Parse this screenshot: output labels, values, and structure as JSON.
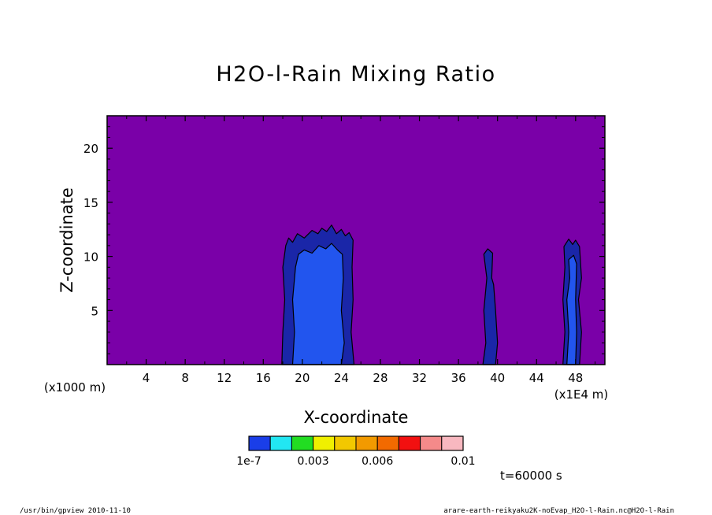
{
  "chart_data": {
    "type": "heatmap",
    "title": "H2O-l-Rain Mixing Ratio",
    "xlabel": "X-coordinate",
    "ylabel": "Z-coordinate",
    "x_unit_left": "(x1000 m)",
    "x_unit_right": "(x1E4 m)",
    "xlim": [
      0,
      51
    ],
    "ylim": [
      0,
      23
    ],
    "x_ticks": [
      4,
      8,
      12,
      16,
      20,
      24,
      28,
      32,
      36,
      40,
      44,
      48
    ],
    "x_tick_labels": [
      "4",
      "8",
      "12",
      "16",
      "20",
      "24",
      "28",
      "32",
      "36",
      "40",
      "44",
      "48"
    ],
    "y_ticks": [
      5,
      10,
      15,
      20
    ],
    "y_tick_labels": [
      "5",
      "10",
      "15",
      "20"
    ],
    "background_color": "#7a00a8",
    "regions": [
      {
        "name": "cell-1-outer",
        "level": "1e-7",
        "color": "#1a26a8",
        "polygon": [
          [
            17.9,
            0
          ],
          [
            18.0,
            3
          ],
          [
            18.2,
            6
          ],
          [
            18.0,
            9
          ],
          [
            18.3,
            11
          ],
          [
            18.6,
            11.7
          ],
          [
            19.0,
            11.3
          ],
          [
            19.5,
            12.1
          ],
          [
            20.2,
            11.7
          ],
          [
            21.0,
            12.4
          ],
          [
            21.6,
            12.1
          ],
          [
            22.0,
            12.6
          ],
          [
            22.5,
            12.3
          ],
          [
            23.0,
            12.9
          ],
          [
            23.5,
            12.1
          ],
          [
            24.0,
            12.5
          ],
          [
            24.4,
            11.9
          ],
          [
            24.8,
            12.2
          ],
          [
            25.2,
            11.5
          ],
          [
            25.1,
            9
          ],
          [
            25.2,
            6
          ],
          [
            25.0,
            3
          ],
          [
            25.3,
            0
          ]
        ]
      },
      {
        "name": "cell-1-inner",
        "level": "0.0005",
        "color": "#2255ee",
        "polygon": [
          [
            19.0,
            0
          ],
          [
            19.2,
            3
          ],
          [
            19.0,
            6
          ],
          [
            19.3,
            9
          ],
          [
            19.6,
            10.2
          ],
          [
            20.2,
            10.6
          ],
          [
            21.0,
            10.3
          ],
          [
            21.7,
            11.0
          ],
          [
            22.4,
            10.7
          ],
          [
            23.0,
            11.2
          ],
          [
            23.6,
            10.6
          ],
          [
            24.1,
            10.2
          ],
          [
            24.2,
            8
          ],
          [
            24.0,
            5
          ],
          [
            24.3,
            2
          ],
          [
            24.0,
            0
          ]
        ]
      },
      {
        "name": "cell-2",
        "level": "1e-7",
        "color": "#1a26a8",
        "polygon": [
          [
            38.5,
            0
          ],
          [
            38.8,
            2
          ],
          [
            38.6,
            5
          ],
          [
            38.9,
            8
          ],
          [
            38.6,
            10.2
          ],
          [
            39.0,
            10.7
          ],
          [
            39.5,
            10.3
          ],
          [
            39.4,
            8
          ],
          [
            39.6,
            7.4
          ],
          [
            39.8,
            5
          ],
          [
            40.0,
            2
          ],
          [
            39.8,
            0
          ]
        ]
      },
      {
        "name": "cell-3-outer",
        "level": "1e-7",
        "color": "#1a26a8",
        "polygon": [
          [
            46.7,
            0
          ],
          [
            46.9,
            3
          ],
          [
            46.7,
            6
          ],
          [
            46.9,
            9
          ],
          [
            46.8,
            10.9
          ],
          [
            47.3,
            11.6
          ],
          [
            47.7,
            11.1
          ],
          [
            48.0,
            11.5
          ],
          [
            48.4,
            10.9
          ],
          [
            48.6,
            8
          ],
          [
            48.3,
            6
          ],
          [
            48.6,
            3
          ],
          [
            48.4,
            0
          ]
        ]
      },
      {
        "name": "cell-3-inner",
        "level": "0.0005",
        "color": "#2255ee",
        "polygon": [
          [
            47.1,
            0
          ],
          [
            47.3,
            3
          ],
          [
            47.1,
            6
          ],
          [
            47.4,
            8
          ],
          [
            47.3,
            9.7
          ],
          [
            47.8,
            10.1
          ],
          [
            48.1,
            9.3
          ],
          [
            48.0,
            6
          ],
          [
            48.1,
            3
          ],
          [
            48.0,
            0
          ]
        ]
      }
    ]
  },
  "colorbar": {
    "colors": [
      "#1a3ee8",
      "#22e6f2",
      "#22dd22",
      "#f0f000",
      "#f2c800",
      "#f29a00",
      "#f26a00",
      "#f21010",
      "#f58a8a",
      "#f8b8c0"
    ],
    "labels": [
      {
        "text": "1e-7",
        "at": 0.0
      },
      {
        "text": "0.003",
        "at": 3.0
      },
      {
        "text": "0.006",
        "at": 6.0
      },
      {
        "text": "0.01",
        "at": 10.0
      }
    ]
  },
  "time_label": "t=60000 s",
  "footer_left": "/usr/bin/gpview  2010-11-10",
  "footer_right": "arare-earth-reikyaku2K-noEvap_H2O-l-Rain.nc@H2O-l-Rain"
}
